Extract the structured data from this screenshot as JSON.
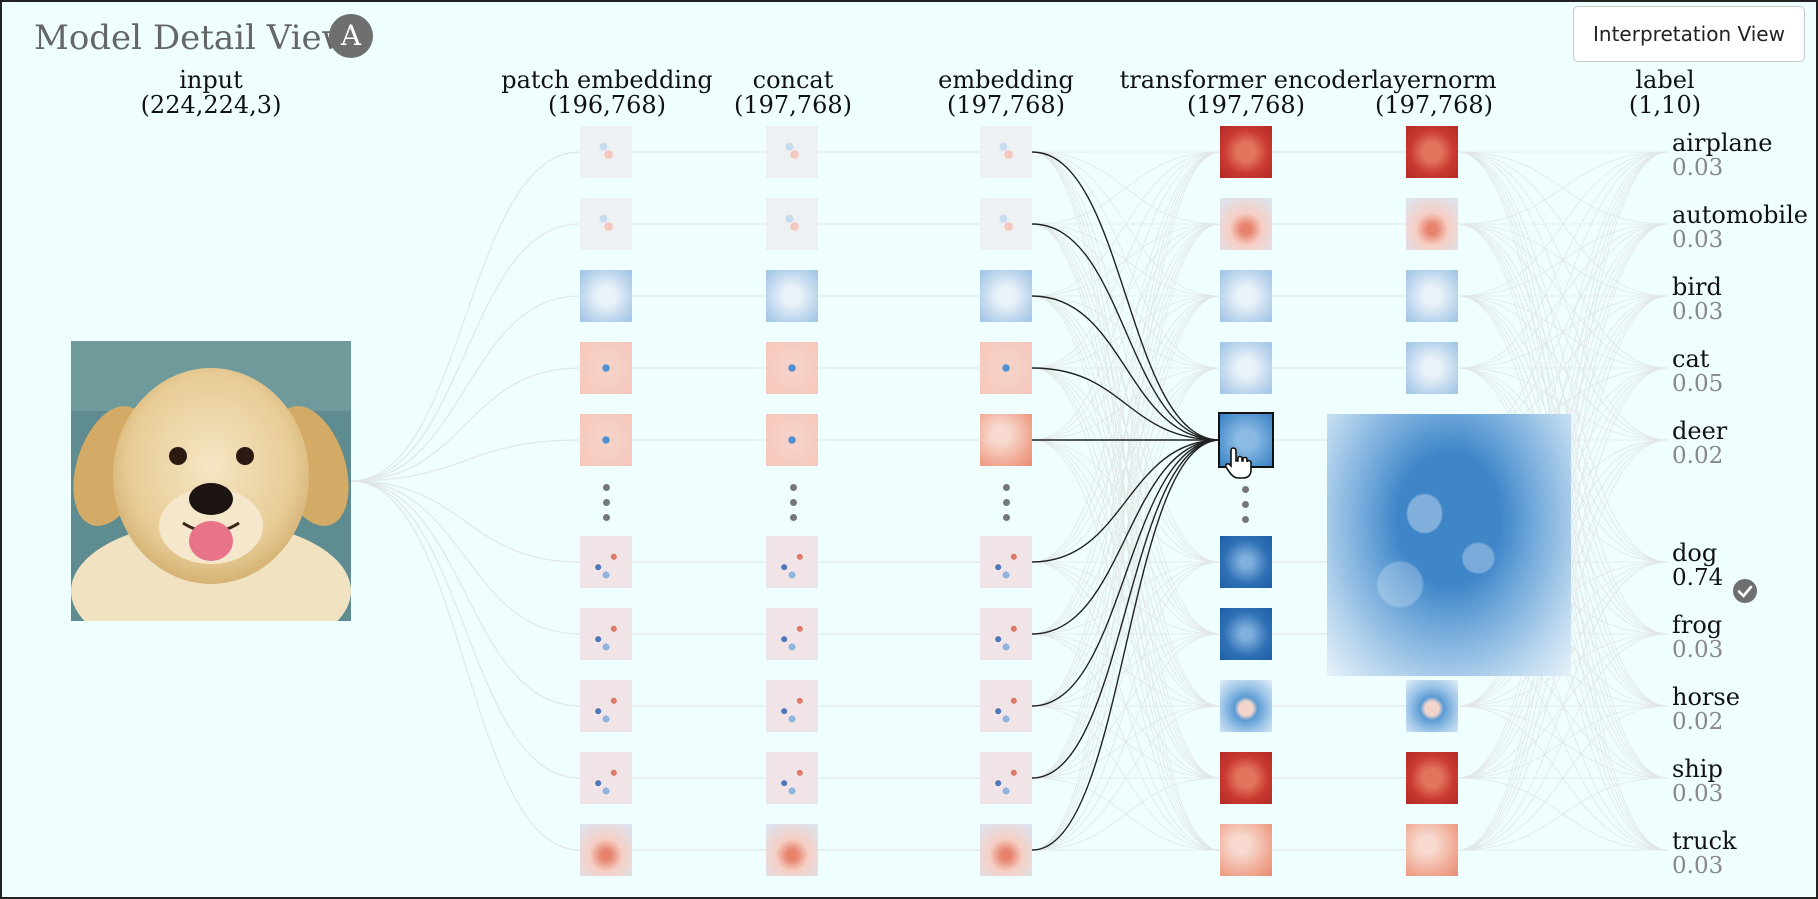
{
  "header": {
    "title": "Model Detail View",
    "badge": "A",
    "interpretation_button": "Interpretation View"
  },
  "columns": [
    {
      "id": "input",
      "name": "input",
      "shape": "(224,224,3)"
    },
    {
      "id": "patch",
      "name": "patch embedding",
      "shape": "(196,768)"
    },
    {
      "id": "concat",
      "name": "concat",
      "shape": "(197,768)"
    },
    {
      "id": "embed",
      "name": "embedding",
      "shape": "(197,768)"
    },
    {
      "id": "encoder",
      "name": "transformer encoder",
      "shape": "(197,768)"
    },
    {
      "id": "layernorm",
      "name": "layernorm",
      "shape": "(197,768)"
    },
    {
      "id": "label",
      "name": "label",
      "shape": "(1,10)"
    }
  ],
  "labels": [
    {
      "name": "airplane",
      "prob": "0.03"
    },
    {
      "name": "automobile",
      "prob": "0.03"
    },
    {
      "name": "bird",
      "prob": "0.03"
    },
    {
      "name": "cat",
      "prob": "0.05"
    },
    {
      "name": "deer",
      "prob": "0.02"
    },
    {
      "name": "dog",
      "prob": "0.74",
      "predicted": true
    },
    {
      "name": "frog",
      "prob": "0.03"
    },
    {
      "name": "horse",
      "prob": "0.02"
    },
    {
      "name": "ship",
      "prob": "0.03"
    },
    {
      "name": "truck",
      "prob": "0.03"
    }
  ],
  "node_tones": {
    "patch": [
      "neutral",
      "neutral",
      "blue-light",
      "red-light",
      "red-light",
      "mixed",
      "mixed",
      "mixed",
      "mixed",
      "red-blue"
    ],
    "concat": [
      "neutral",
      "neutral",
      "blue-light",
      "red-light",
      "red-light",
      "mixed",
      "mixed",
      "mixed",
      "mixed",
      "red-blue"
    ],
    "embed": [
      "neutral",
      "neutral",
      "blue-light",
      "red-light",
      "red-mid",
      "mixed",
      "mixed",
      "mixed",
      "mixed",
      "red-blue"
    ],
    "encoder": [
      "red-dark",
      "red-blue",
      "blue-light",
      "blue-light",
      "blue-mid",
      "blue-dark",
      "blue-dark",
      "blue-ring",
      "red-dark",
      "red-mid"
    ],
    "layernorm": [
      "red-dark",
      "red-blue",
      "blue-light",
      "blue-light",
      "hidden",
      "hidden",
      "hidden",
      "blue-ring",
      "red-dark",
      "red-mid"
    ]
  },
  "selected_node": {
    "column": "encoder",
    "row": 4
  },
  "colors": {
    "background": "#effeff",
    "edge": "#e2e6e6",
    "active_edge": "#222222",
    "check": "#6f6f6f"
  }
}
